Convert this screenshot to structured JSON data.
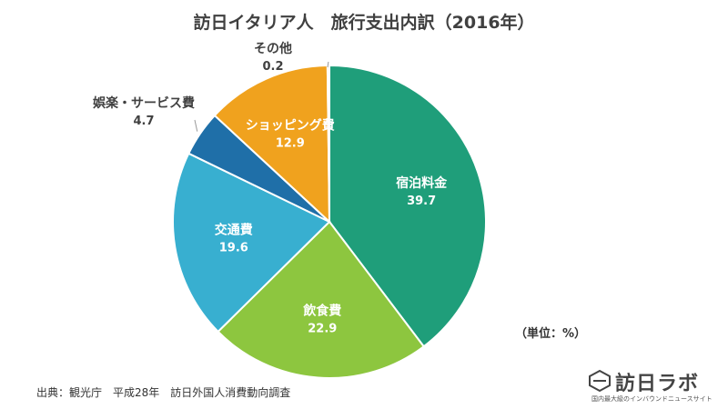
{
  "chart_data": {
    "type": "pie",
    "title": "訪日イタリア人　旅行支出内訳（2016年）",
    "categories": [
      "宿泊料金",
      "飲食費",
      "交通費",
      "娯楽・サービス費",
      "ショッピング費",
      "その他"
    ],
    "values": [
      39.7,
      22.9,
      19.6,
      4.7,
      12.9,
      0.2
    ],
    "value_labels": [
      "39.7",
      "22.9",
      "19.6",
      "4.7",
      "12.9",
      "0.2"
    ],
    "colors": [
      "#1f9e7a",
      "#8dc63f",
      "#38afd0",
      "#1f6fa8",
      "#f0a21e",
      "#f5d79a"
    ],
    "start_angle": "12 o'clock",
    "direction": "clockwise"
  },
  "unit_label": "（単位：%）",
  "source": "出典：観光庁　平成28年　訪日外国人消費動向調査",
  "logo": {
    "name": "訪日ラボ",
    "tagline": "国内最大級のインバウンドニュースサイト"
  }
}
